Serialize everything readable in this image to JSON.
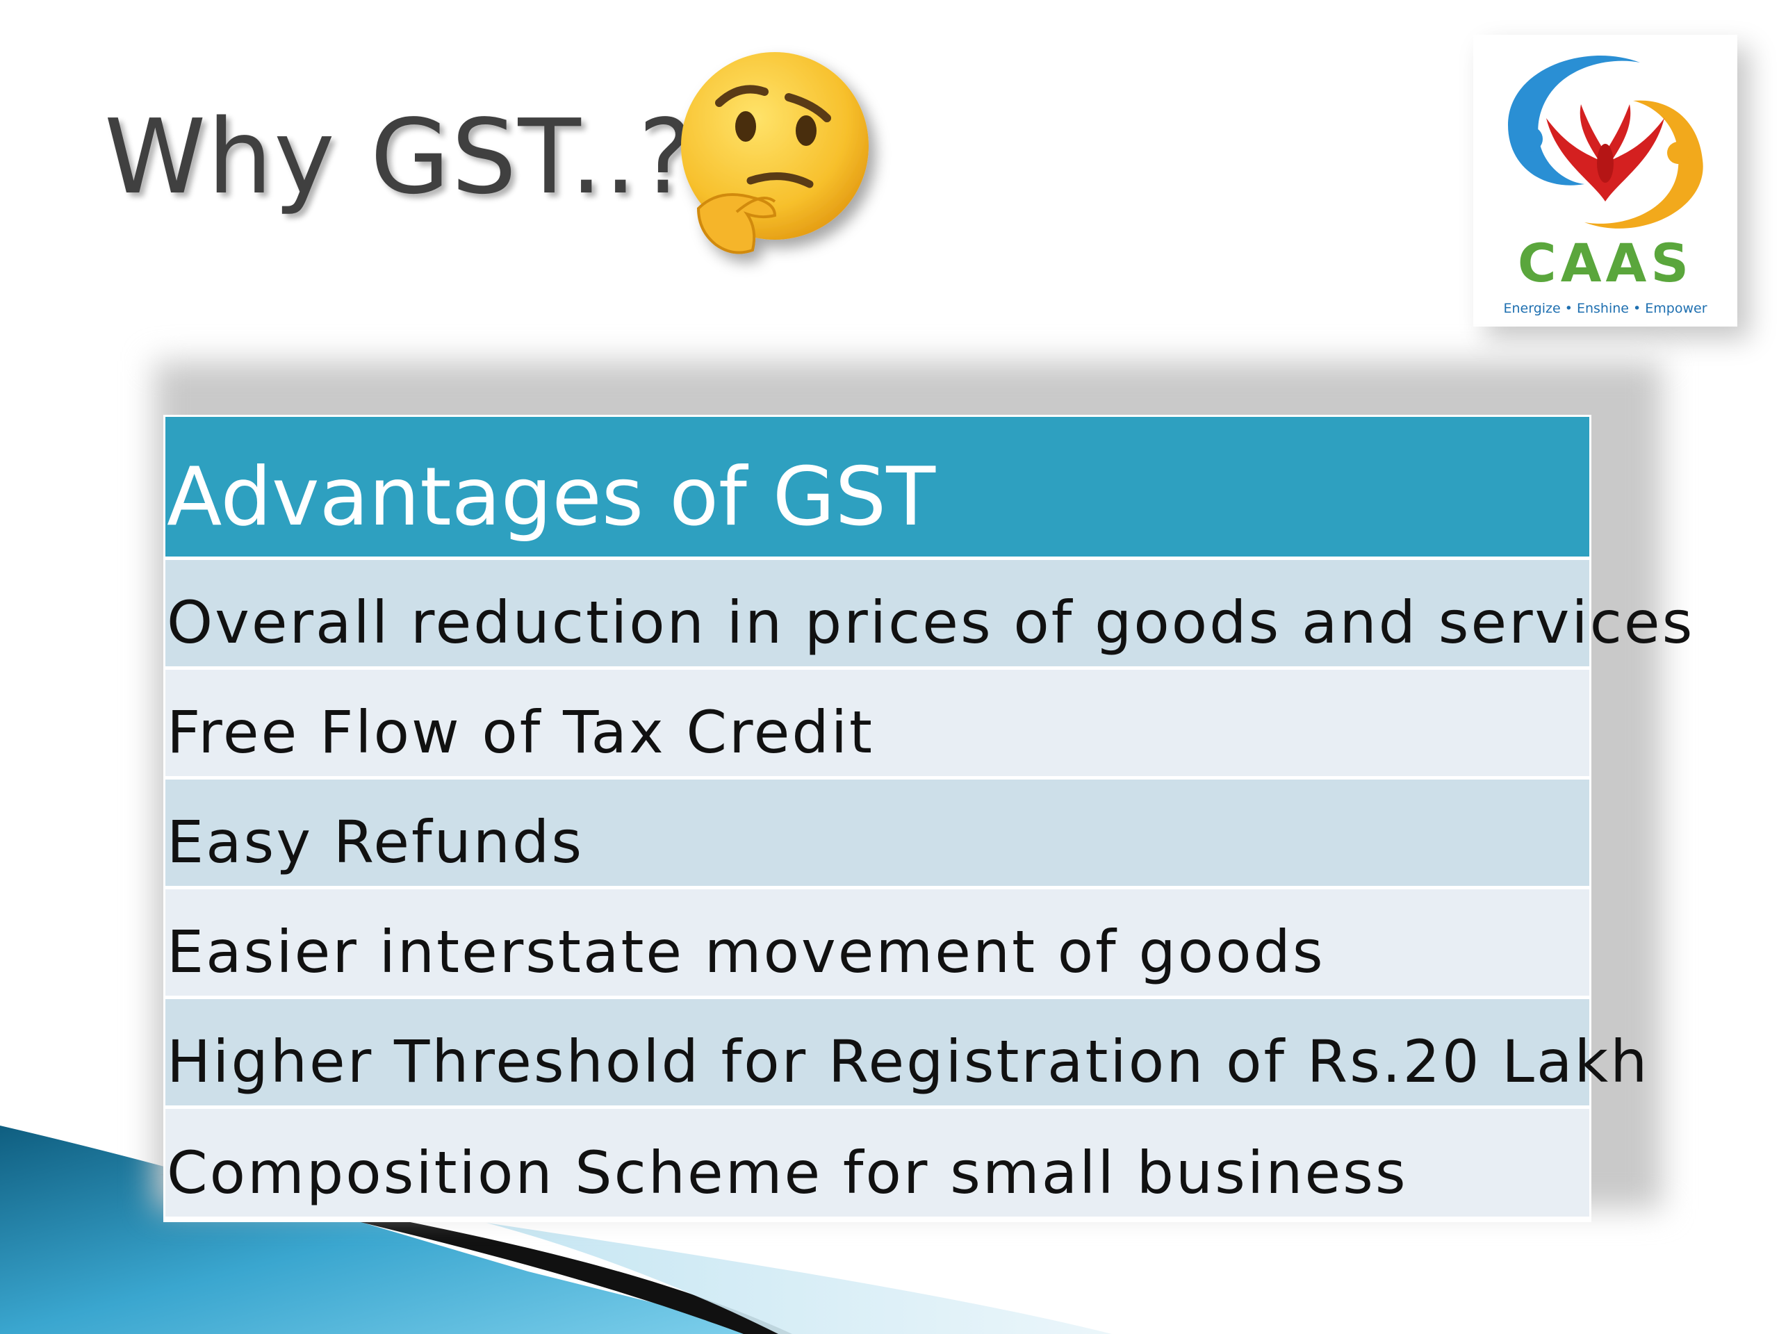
{
  "slide": {
    "title": "Why GST..?",
    "emoji_icon": "thinking-face-icon"
  },
  "logo": {
    "name": "CAAS",
    "tagline": "Energize • Enshine • Empower",
    "colors": {
      "ring_blue": "#2a8fd4",
      "ring_orange": "#f2a91c",
      "wing_red": "#d42020",
      "letters_green": "#5aa63c",
      "letters_blue": "#1e7ec8"
    }
  },
  "table": {
    "header": "Advantages of GST",
    "rows": [
      "Overall reduction in prices of goods and services",
      "Free Flow of Tax Credit",
      "Easy Refunds",
      "Easier interstate movement of goods",
      "Higher Threshold for Registration of Rs.20 Lakh",
      "Composition Scheme for small business"
    ],
    "colors": {
      "header_bg": "#2ea0c0",
      "row_dark": "#cddfe9",
      "row_light": "#e8eef4"
    }
  }
}
